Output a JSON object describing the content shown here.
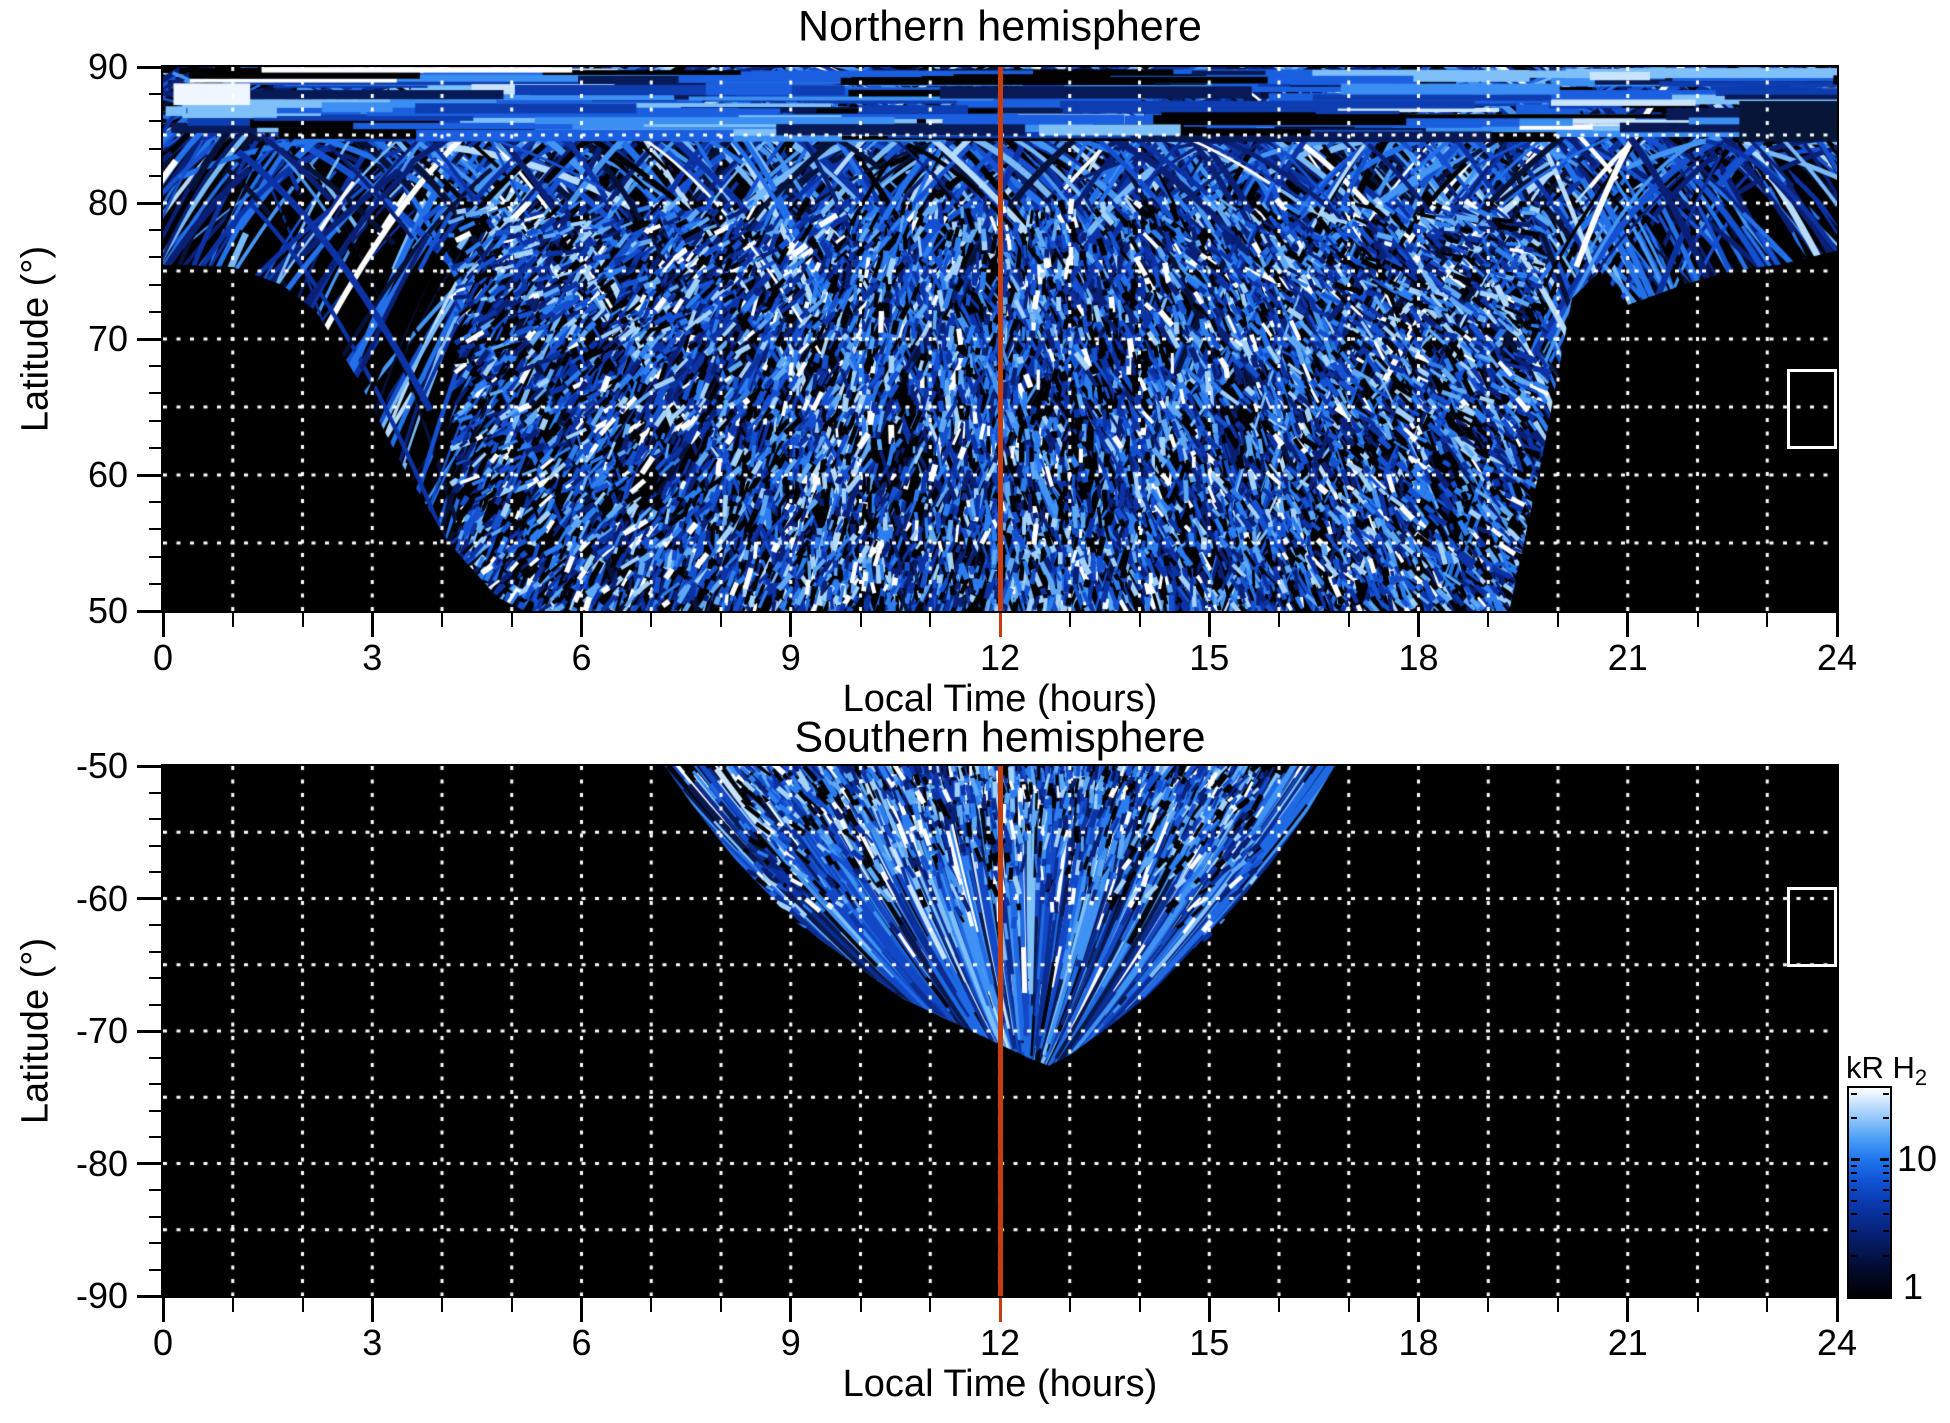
{
  "chart_data": {
    "type": "heatmap",
    "value_label": "kR H2",
    "panels": [
      {
        "id": "north",
        "title": "Northern hemisphere",
        "xlabel": "Local Time (hours)",
        "ylabel": "Latitude (°)",
        "x_range": [
          0,
          24
        ],
        "y_range": [
          50,
          90
        ],
        "x_tick_values": [
          0,
          3,
          6,
          9,
          12,
          15,
          18,
          21,
          24
        ],
        "x_tick_labels": [
          "0",
          "3",
          "6",
          "9",
          "12",
          "15",
          "18",
          "21",
          "24"
        ],
        "x_minor_step": 1,
        "y_tick_values": [
          90,
          80,
          70,
          60,
          50
        ],
        "y_tick_labels": [
          "90",
          "80",
          "70",
          "60",
          "50"
        ],
        "y_minor_step": 2,
        "grid_hour_step": 1,
        "grid_lat_lines": [
          85,
          80,
          75,
          70,
          65,
          60,
          55
        ],
        "noon_line_hour": 12,
        "coverage_boundary_lat_min_by_hour": [
          [
            0,
            75.5
          ],
          [
            1,
            75.3
          ],
          [
            1.7,
            74.0
          ],
          [
            2.2,
            72.0
          ],
          [
            2.8,
            67.0
          ],
          [
            3.4,
            61.0
          ],
          [
            4.1,
            55.0
          ],
          [
            4.8,
            51.0
          ],
          [
            5.2,
            50.0
          ],
          [
            19.3,
            50.0
          ],
          [
            19.8,
            62.0
          ],
          [
            20.2,
            73.0
          ],
          [
            20.6,
            75.0
          ],
          [
            21.0,
            72.5
          ],
          [
            21.8,
            74.0
          ],
          [
            22.5,
            75.0
          ],
          [
            23.2,
            75.5
          ],
          [
            24,
            76.5
          ]
        ],
        "no_data_box": {
          "hour_start": 23.28,
          "hour_end": 24,
          "lat_top": 67.8,
          "lat_bottom": 61.9
        },
        "texture": {
          "seed": 7,
          "arcs": 170,
          "streaks": 1500,
          "top_bands": 200,
          "speckle": 7600,
          "peak_lat_min": 84,
          "peak_lat_max": 95,
          "fixed_patches": [
            {
              "h0": 0.15,
              "h1": 1.25,
              "lat0": 87.2,
              "lat1": 88.8,
              "color": "#eef6ff"
            },
            {
              "h0": 22.6,
              "h1": 24.0,
              "lat0": 84.5,
              "lat1": 87.5,
              "color": "#061538"
            }
          ]
        }
      },
      {
        "id": "south",
        "title": "Southern hemisphere",
        "xlabel": "Local Time (hours)",
        "ylabel": "Latitude (°)",
        "x_range": [
          0,
          24
        ],
        "y_range": [
          -90,
          -50
        ],
        "x_tick_values": [
          0,
          3,
          6,
          9,
          12,
          15,
          18,
          21,
          24
        ],
        "x_tick_labels": [
          "0",
          "3",
          "6",
          "9",
          "12",
          "15",
          "18",
          "21",
          "24"
        ],
        "x_minor_step": 1,
        "y_tick_values": [
          -50,
          -60,
          -70,
          -80,
          -90
        ],
        "y_tick_labels": [
          "-50",
          "-60",
          "-70",
          "-80",
          "-90"
        ],
        "y_minor_step": 2,
        "grid_hour_step": 1,
        "grid_lat_lines": [
          -55,
          -60,
          -65,
          -70,
          -75,
          -80,
          -85
        ],
        "noon_line_hour": 12,
        "coverage_boundary_lat_max_depth_by_hour": [
          [
            7.2,
            -50.0
          ],
          [
            7.6,
            -53.0
          ],
          [
            8.2,
            -57.0
          ],
          [
            9.0,
            -61.5
          ],
          [
            9.8,
            -64.5
          ],
          [
            10.6,
            -67.5
          ],
          [
            11.4,
            -69.5
          ],
          [
            12.0,
            -71.0
          ],
          [
            12.4,
            -72.0
          ],
          [
            12.7,
            -72.6
          ],
          [
            13.0,
            -71.8
          ],
          [
            13.6,
            -69.5
          ],
          [
            14.2,
            -67.0
          ],
          [
            15.0,
            -63.0
          ],
          [
            15.8,
            -58.0
          ],
          [
            16.4,
            -53.5
          ],
          [
            16.8,
            -50.0
          ]
        ],
        "no_data_box": {
          "hour_start": 23.28,
          "hour_end": 24,
          "lat_top": -59.1,
          "lat_bottom": -65.2
        },
        "texture": {
          "seed": 13,
          "streaks": 980,
          "speckle": 1700,
          "apex_hour": 12.4,
          "apex_lat": -73.5
        }
      }
    ],
    "colorbar": {
      "title_main": "kR H",
      "title_sub": "2",
      "scale": "log",
      "range": [
        1,
        33
      ],
      "tick_labels": [
        {
          "value": 10,
          "label": "10"
        },
        {
          "value": 1,
          "label": "1"
        }
      ],
      "minor_tick_values": [
        2,
        3,
        4,
        5,
        6,
        7,
        8,
        9,
        20,
        30
      ],
      "gradient_stops": [
        [
          0.0,
          "#000000"
        ],
        [
          0.14,
          "#020c30"
        ],
        [
          0.3,
          "#062174"
        ],
        [
          0.45,
          "#0a39ae"
        ],
        [
          0.57,
          "#1257d8"
        ],
        [
          0.66,
          "#1f76ee"
        ],
        [
          0.76,
          "#4da0f5"
        ],
        [
          0.87,
          "#9ccdfa"
        ],
        [
          1.0,
          "#ffffff"
        ]
      ]
    },
    "palettes": {
      "streaks": [
        [
          "#000000",
          0.12
        ],
        [
          "#061239",
          0.1
        ],
        [
          "#0a2076",
          0.13
        ],
        [
          "#0c33a6",
          0.15
        ],
        [
          "#1450d0",
          0.15
        ],
        [
          "#2270ea",
          0.12
        ],
        [
          "#4495f3",
          0.09
        ],
        [
          "#78b9f7",
          0.07
        ],
        [
          "#b6dbfb",
          0.04
        ],
        [
          "#ffffff",
          0.03
        ]
      ],
      "speckle": [
        [
          "#000000",
          0.2
        ],
        [
          "#0a2076",
          0.12
        ],
        [
          "#0c33a6",
          0.14
        ],
        [
          "#1450d0",
          0.15
        ],
        [
          "#2b7df0",
          0.13
        ],
        [
          "#5ea8f5",
          0.11
        ],
        [
          "#a2d1fa",
          0.08
        ],
        [
          "#ffffff",
          0.07
        ]
      ],
      "bands": [
        [
          "#000000",
          0.16
        ],
        [
          "#081a55",
          0.13
        ],
        [
          "#0d3db0",
          0.17
        ],
        [
          "#1a5fe0",
          0.17
        ],
        [
          "#3b8ef2",
          0.14
        ],
        [
          "#7fc0f8",
          0.11
        ],
        [
          "#c9e4fc",
          0.06
        ],
        [
          "#ffffff",
          0.06
        ]
      ],
      "south_streaks": [
        [
          "#02060f",
          0.08
        ],
        [
          "#08194d",
          0.12
        ],
        [
          "#0b2d92",
          0.16
        ],
        [
          "#1248c6",
          0.17
        ],
        [
          "#1f6ae4",
          0.15
        ],
        [
          "#3f92f2",
          0.12
        ],
        [
          "#7fc0f8",
          0.1
        ],
        [
          "#c9e4fc",
          0.05
        ],
        [
          "#ffffff",
          0.05
        ]
      ]
    },
    "colors": {
      "noon_line": "#c63d0e",
      "grid": "#ffffff",
      "plot_background": "#000000",
      "page_background": "#ffffff",
      "axis": "#000000"
    }
  }
}
